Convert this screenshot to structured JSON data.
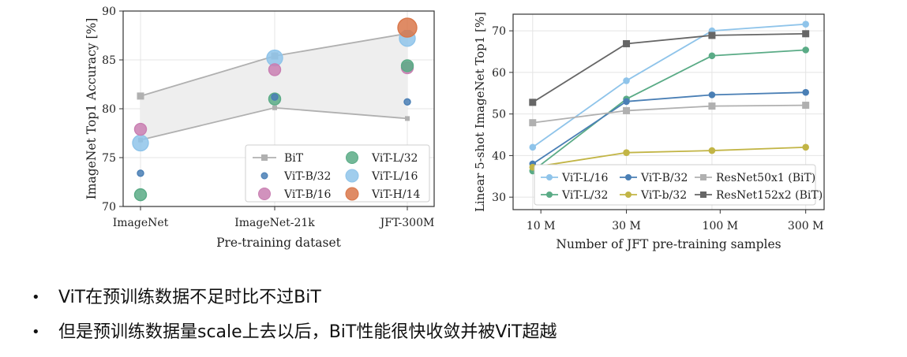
{
  "chart_data": [
    {
      "type": "scatter",
      "xlabel": "Pre-training dataset",
      "ylabel": "ImageNet Top1 Accuracy [%]",
      "categories": [
        "ImageNet",
        "ImageNet-21k",
        "JFT-300M"
      ],
      "ylim": [
        70,
        90
      ],
      "yticks": [
        70,
        75,
        80,
        85,
        90
      ],
      "grid": true,
      "legend_position": "bottom-right",
      "bit_band": {
        "upper": [
          81.3,
          85.4,
          87.7
        ],
        "lower": [
          76.8,
          80.1,
          79.0
        ]
      },
      "series": [
        {
          "name": "BiT",
          "marker": "square-line",
          "color": "#b0b0b0",
          "values": [
            81.3,
            85.4,
            87.7
          ],
          "lower": [
            76.8,
            80.1,
            79.0
          ]
        },
        {
          "name": "ViT-B/32",
          "color": "#4a7fb5",
          "size": "small",
          "values": [
            73.4,
            81.2,
            80.7
          ]
        },
        {
          "name": "ViT-B/16",
          "color": "#c97fb2",
          "size": "medium",
          "values": [
            77.9,
            84.0,
            84.2
          ]
        },
        {
          "name": "ViT-L/32",
          "color": "#5aab86",
          "size": "medium",
          "values": [
            71.2,
            81.0,
            84.4
          ]
        },
        {
          "name": "ViT-L/16",
          "color": "#8fc4ea",
          "size": "large",
          "values": [
            76.5,
            85.2,
            87.2
          ]
        },
        {
          "name": "ViT-H/14",
          "color": "#d9774a",
          "size": "xlarge",
          "values": [
            null,
            null,
            88.3
          ]
        }
      ]
    },
    {
      "type": "line",
      "xlabel": "Number of JFT pre-training samples",
      "ylabel": "Linear 5-shot ImageNet Top1 [%]",
      "x_ticklabels": [
        "10 M",
        "30 M",
        "100 M",
        "300 M"
      ],
      "x": [
        9,
        30,
        90,
        300
      ],
      "ylim": [
        27,
        74
      ],
      "yticks": [
        30,
        40,
        50,
        60,
        70
      ],
      "scale_x": "log",
      "grid": true,
      "legend_position": "bottom-right",
      "series": [
        {
          "name": "ViT-L/16",
          "color": "#8fc4ea",
          "marker": "circle",
          "values": [
            42.0,
            58.0,
            70.0,
            71.6
          ]
        },
        {
          "name": "ViT-L/32",
          "color": "#5aab86",
          "marker": "circle",
          "values": [
            36.3,
            53.6,
            64.0,
            65.4
          ]
        },
        {
          "name": "ViT-B/32",
          "color": "#4a7fb5",
          "marker": "circle",
          "values": [
            38.0,
            53.0,
            54.6,
            55.2
          ]
        },
        {
          "name": "ViT-b/32",
          "color": "#c2b546",
          "marker": "circle",
          "values": [
            37.2,
            40.7,
            41.2,
            42.0
          ]
        },
        {
          "name": "ResNet50x1 (BiT)",
          "color": "#b0b0b0",
          "marker": "square",
          "values": [
            47.9,
            50.8,
            51.9,
            52.1
          ]
        },
        {
          "name": "ResNet152x2 (BiT)",
          "color": "#666666",
          "marker": "square",
          "values": [
            52.8,
            66.9,
            68.9,
            69.3
          ]
        }
      ]
    }
  ],
  "bullets": [
    "ViT在预训练数据不足时比不过BiT",
    "但是预训练数据量scale上去以后，BiT性能很快收敛并被ViT超越"
  ]
}
